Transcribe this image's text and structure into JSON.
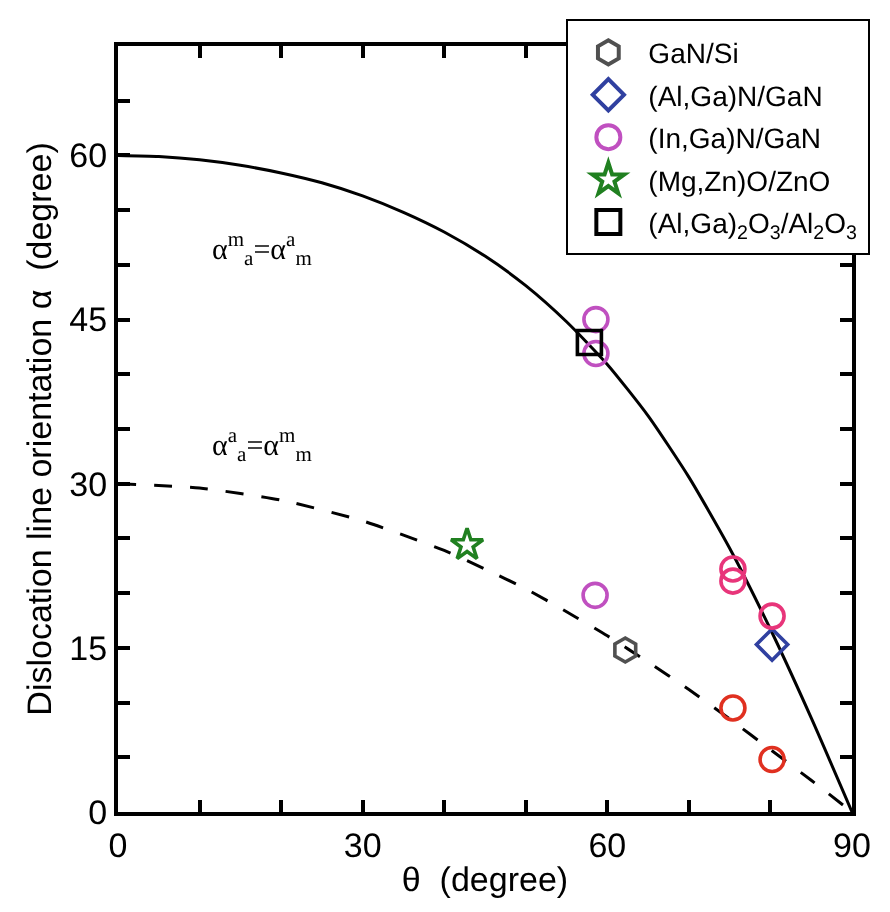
{
  "chart_data": {
    "type": "scatter",
    "xlabel": "θ  (degree)",
    "ylabel": "Dislocation line orientation α  (degree)",
    "xlim": [
      0,
      90
    ],
    "ylim": [
      0,
      70
    ],
    "xticks": [
      0,
      {
        "value": 10,
        "label": null
      },
      {
        "value": 20,
        "label": null
      },
      30,
      {
        "value": 40,
        "label": null
      },
      {
        "value": 50,
        "label": null
      },
      60,
      {
        "value": 70,
        "label": null
      },
      {
        "value": 80,
        "label": null
      },
      90
    ],
    "yticks": [
      0,
      {
        "value": 5,
        "label": null
      },
      {
        "value": 10,
        "label": null
      },
      15,
      {
        "value": 20,
        "label": null
      },
      {
        "value": 25,
        "label": null
      },
      30,
      {
        "value": 35,
        "label": null
      },
      {
        "value": 40,
        "label": null
      },
      45,
      {
        "value": 50,
        "label": null
      },
      {
        "value": 55,
        "label": null
      },
      60,
      {
        "value": 65,
        "label": null
      }
    ],
    "legend": "top right",
    "series": [
      {
        "type": "line",
        "marker": "none",
        "line_style": "solid",
        "color": "#000000",
        "x": [
          0,
          5,
          10,
          15,
          20,
          25,
          30,
          35,
          40,
          45,
          50,
          55,
          60,
          65,
          70,
          75,
          80,
          85,
          90
        ],
        "values": [
          60.0,
          59.9,
          59.6,
          59.1,
          58.4,
          57.5,
          56.3,
          54.8,
          53.0,
          50.8,
          48.1,
          44.8,
          40.9,
          36.2,
          30.6,
          24.1,
          16.7,
          8.6,
          0
        ]
      },
      {
        "type": "line",
        "marker": "none",
        "line_style": "dashed",
        "color": "#000000",
        "x": [
          0,
          10,
          20,
          30,
          40,
          45,
          50,
          55,
          60,
          65,
          70,
          75,
          80,
          85,
          90
        ],
        "values": [
          30.0,
          29.6,
          28.5,
          26.6,
          23.9,
          22.2,
          20.4,
          18.3,
          16.1,
          13.7,
          11.2,
          8.5,
          5.7,
          2.9,
          0
        ]
      },
      {
        "name": "GaN/Si",
        "color": "#505050",
        "x": [
          62.2
        ],
        "values": [
          14.8
        ]
      },
      {
        "name": "(Al,Ga)N/GaN",
        "marker": "diamond",
        "color": "#3040a0",
        "x": [
          80.2
        ],
        "values": [
          15.3
        ]
      },
      {
        "name": "(In,Ga)N/GaN",
        "marker": "circle",
        "color": "#e8357a",
        "colors": [
          "#c050c0",
          "#c050c0",
          "#c050c0",
          "#e8357a",
          "#e8357a",
          "#e8357a",
          "#e03020",
          "#e03020"
        ],
        "x": [
          58.6,
          58.6,
          58.5,
          75.4,
          75.4,
          80.2,
          75.4,
          80.2
        ],
        "values": [
          45.0,
          41.9,
          19.8,
          22.2,
          21.1,
          17.9,
          9.5,
          4.8
        ]
      },
      {
        "name": "(Mg,Zn)O/ZnO",
        "marker": "star",
        "color": "#208020",
        "x": [
          42.8
        ],
        "values": [
          24.4
        ]
      },
      {
        "name": "(Al,Ga)$_{2}$O$_{3}$/Al$_{2}$O$_{3}$",
        "marker": "square",
        "color": "#000000",
        "x": [
          57.8
        ],
        "values": [
          42.9
        ]
      }
    ],
    "annotations": [
      "α$^{m}$$_{a}$=α$^{a}$$_{m}$",
      "α$^{a}$$_{a}$=α$^{m}$$_{m}$"
    ]
  }
}
